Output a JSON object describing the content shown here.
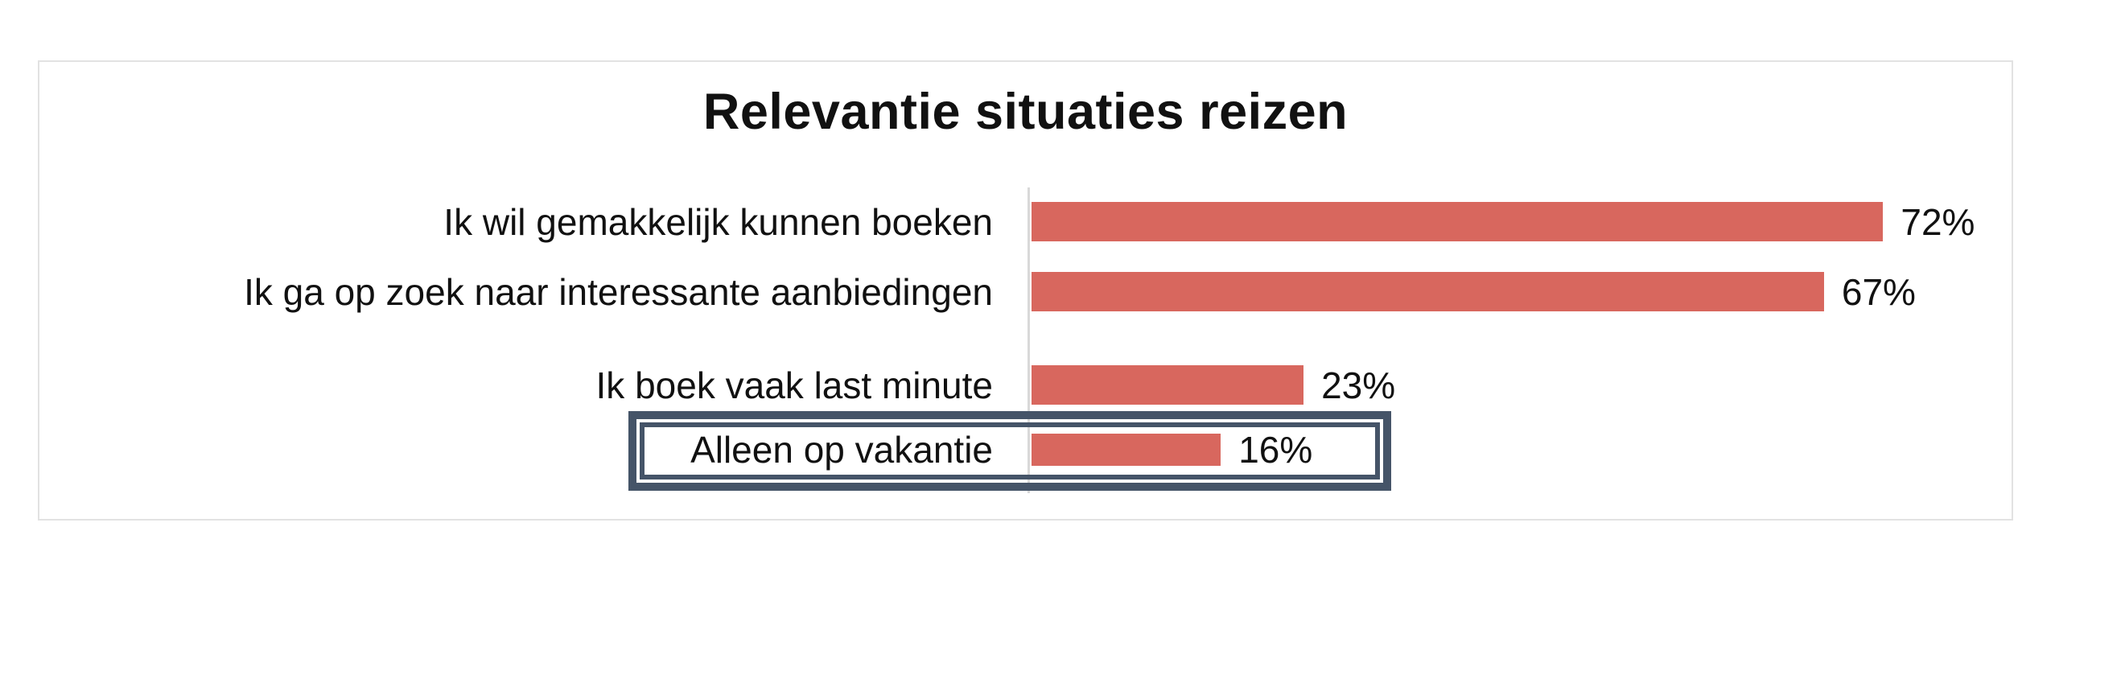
{
  "chart_data": {
    "type": "bar",
    "orientation": "horizontal",
    "title": "Relevantie situaties reizen",
    "categories": [
      "Ik wil gemakkelijk kunnen boeken",
      "Ik ga op zoek naar interessante aanbiedingen",
      "Ik boek vaak last minute",
      "Alleen op vakantie"
    ],
    "values": [
      72,
      67,
      23,
      16
    ],
    "rows": [
      {
        "label": "Ik wil gemakkelijk kunnen boeken",
        "value": 72,
        "value_label": "72%",
        "highlighted": false
      },
      {
        "label": "Ik ga op zoek naar interessante aanbiedingen",
        "value": 67,
        "value_label": "67%",
        "highlighted": false
      },
      {
        "label": "Ik boek vaak last minute",
        "value": 23,
        "value_label": "23%",
        "highlighted": false
      },
      {
        "label": "Alleen op vakantie",
        "value": 16,
        "value_label": "16%",
        "highlighted": true
      }
    ],
    "xlabel": "",
    "ylabel": "",
    "xlim": [
      0,
      100
    ],
    "grid": false,
    "legend": {
      "visible": false
    },
    "data_labels": "outside-end",
    "highlight": {
      "target": "Alleen op vakantie",
      "style": "double-border-box"
    }
  },
  "colors": {
    "bar": "#D8675E",
    "highlight_border": "#455468",
    "card_border": "#E2E2E2",
    "axis_line": "#D9D9D9",
    "text": "#111111",
    "background": "#FFFFFF"
  }
}
